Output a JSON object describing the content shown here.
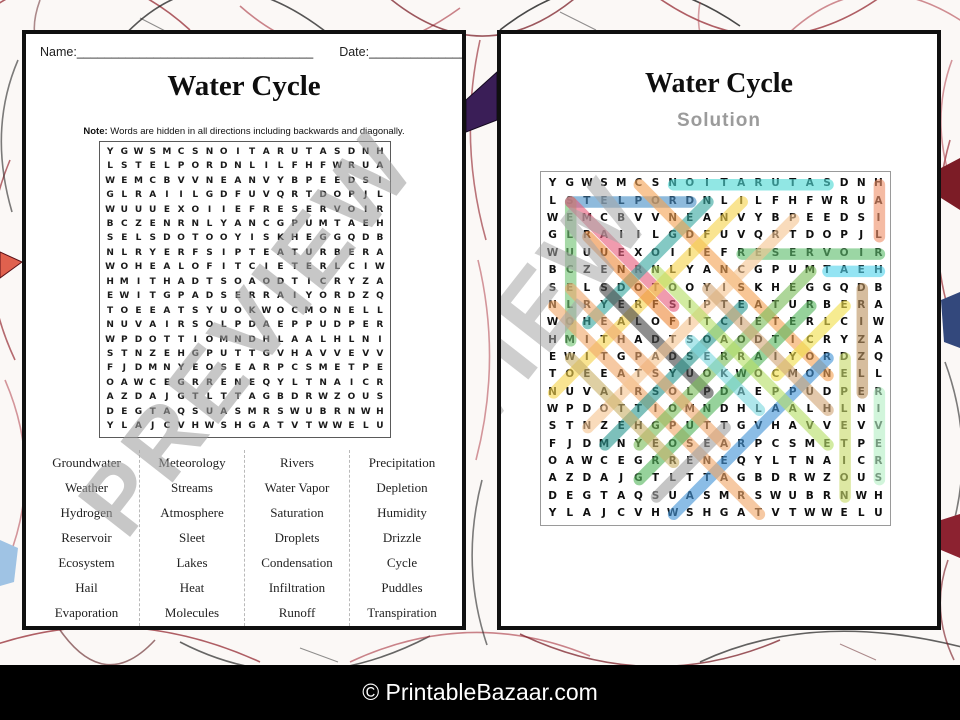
{
  "watermark": {
    "text": "PREVIEW",
    "color": "#9e9e9e"
  },
  "footer": {
    "text": "© PrintableBazaar.com",
    "background": "#000000",
    "text_color": "#ffffff"
  },
  "puzzle_page": {
    "name_label": "Name:",
    "name_line": "__________________________________",
    "date_label": "Date:",
    "date_line": "__________________",
    "title": "Water Cycle",
    "note_bold": "Note:",
    "note_rest": " Words are hidden in all directions including backwards and diagonally.",
    "word_columns": [
      [
        "Groundwater",
        "Weather",
        "Hydrogen",
        "Reservoir",
        "Ecosystem",
        "Hail",
        "Evaporation"
      ],
      [
        "Meteorology",
        "Streams",
        "Atmosphere",
        "Sleet",
        "Lakes",
        "Heat",
        "Molecules"
      ],
      [
        "Rivers",
        "Water Vapor",
        "Saturation",
        "Droplets",
        "Condensation",
        "Infiltration",
        "Runoff"
      ],
      [
        "Precipitation",
        "Depletion",
        "Humidity",
        "Drizzle",
        "Cycle",
        "Puddles",
        "Transpiration"
      ]
    ]
  },
  "solution_page": {
    "title": "Water Cycle",
    "subtitle": "Solution"
  },
  "grid": {
    "rows": [
      "YGWSMCSNOITARUTASDNH",
      "LSTELPORDNLILFHFWRUA",
      "WEMCBVVNEANVYBPEEDSI",
      "GLRAIILGDFUVQRTDOPJL",
      "WUUUEXOIIEFRESERVOIR",
      "BCZENRNLYANCGPUMTAEH",
      "SELSDOTOOYISKHEGGQDB",
      "NLRYERFSIPTEATURBERA",
      "WOHEALOFITCIETERLCIW",
      "HMITHADTSOAODTICRYZA",
      "EWITGPADSERRAIYORDZQ",
      "TOEEATSYUOKWOCMONELL",
      "NUVAIRSOLPDAEPPUDPER",
      "WPDOTTIOMNDHLAALHLNI",
      "STNZEHGPUTTGVHAVVEVV",
      "FJDMNYEOSEARPCSMETPE",
      "OAWCEGRRENEQYLTNAICR",
      "AZDAJGTLTTAGBDRWZOUS",
      "DEGTAQSUASMRSWUBRNWH",
      "YLAJCVHWSHGATVTWWELU"
    ]
  },
  "solution_words": [
    {
      "word": "Saturation",
      "from": [
        1,
        17
      ],
      "to": [
        1,
        8
      ],
      "color": "#4ED9D5"
    },
    {
      "word": "Droplets",
      "from": [
        2,
        9
      ],
      "to": [
        2,
        2
      ],
      "color": "#4A90C8"
    },
    {
      "word": "Hail",
      "from": [
        1,
        20
      ],
      "to": [
        4,
        20
      ],
      "color": "#F0926B"
    },
    {
      "word": "Reservoir",
      "from": [
        5,
        12
      ],
      "to": [
        5,
        20
      ],
      "color": "#5FBE6E"
    },
    {
      "word": "Heat",
      "from": [
        6,
        20
      ],
      "to": [
        6,
        17
      ],
      "color": "#54D5EC"
    },
    {
      "word": "Molecules",
      "from": [
        10,
        2
      ],
      "to": [
        2,
        2
      ],
      "color": "#72C573"
    },
    {
      "word": "Streams",
      "from": [
        8,
        8
      ],
      "to": [
        2,
        2
      ],
      "color": "#E85F7E"
    },
    {
      "word": "Hydrogen",
      "from": [
        9,
        3
      ],
      "to": [
        2,
        10
      ],
      "color": "#39A9A1"
    },
    {
      "word": "Condensation",
      "from": [
        1,
        6
      ],
      "to": [
        12,
        17
      ],
      "color": "#F4A456"
    },
    {
      "word": "Infiltration",
      "from": [
        2,
        12
      ],
      "to": [
        13,
        1
      ],
      "color": "#F6D44E"
    },
    {
      "word": "Runoff",
      "from": [
        4,
        3
      ],
      "to": [
        9,
        8
      ],
      "color": "#EE8C3E"
    },
    {
      "word": "Puddles",
      "from": [
        13,
        10
      ],
      "to": [
        7,
        4
      ],
      "color": "#4A4A4A"
    },
    {
      "word": "Cycle",
      "from": [
        12,
        14
      ],
      "to": [
        8,
        18
      ],
      "color": "#F1E04D"
    },
    {
      "word": "Drizzle",
      "from": [
        7,
        19
      ],
      "to": [
        13,
        19
      ],
      "color": "#BE9663"
    },
    {
      "word": "Depletion",
      "from": [
        11,
        18
      ],
      "to": [
        19,
        18
      ],
      "color": "#C9DB6B"
    },
    {
      "word": "Rivers",
      "from": [
        13,
        20
      ],
      "to": [
        18,
        20
      ],
      "color": "#B5EFC6"
    },
    {
      "word": "Water Vapor",
      "from": [
        20,
        8
      ],
      "to": [
        11,
        17
      ],
      "color": "#4596D8"
    },
    {
      "word": "Transpiration",
      "from": [
        20,
        13
      ],
      "to": [
        8,
        1
      ],
      "color": "#F2A96B"
    },
    {
      "word": "Sleet",
      "from": [
        19,
        7
      ],
      "to": [
        15,
        11
      ],
      "color": "#A3A3A3"
    },
    {
      "word": "Groundwater",
      "from": [
        18,
        6
      ],
      "to": [
        8,
        16
      ],
      "color": "#57B75F"
    },
    {
      "word": "Ecosystem",
      "from": [
        8,
        12
      ],
      "to": [
        16,
        4
      ],
      "color": "#2F9B93"
    },
    {
      "word": "Precipitation",
      "from": [
        3,
        15
      ],
      "to": [
        15,
        3
      ],
      "color": "#F6C693"
    },
    {
      "word": "Meteorology",
      "from": [
        6,
        16
      ],
      "to": [
        16,
        6
      ],
      "color": "#7CBE5B"
    },
    {
      "word": "Weather",
      "from": [
        11,
        2
      ],
      "to": [
        17,
        8
      ],
      "color": "#CBB36B"
    },
    {
      "word": "Atmosphere",
      "from": [
        16,
        11
      ],
      "to": [
        7,
        2
      ],
      "color": "#EFA96F"
    },
    {
      "word": "Evaporation",
      "from": [
        16,
        17
      ],
      "to": [
        6,
        7
      ],
      "color": "#B8E069"
    },
    {
      "word": "Humidity",
      "from": [
        14,
        17
      ],
      "to": [
        7,
        10
      ],
      "color": "#D2A878"
    },
    {
      "word": "Lakes",
      "from": [
        14,
        13
      ],
      "to": [
        10,
        9
      ],
      "color": "#7FD9E0"
    }
  ]
}
